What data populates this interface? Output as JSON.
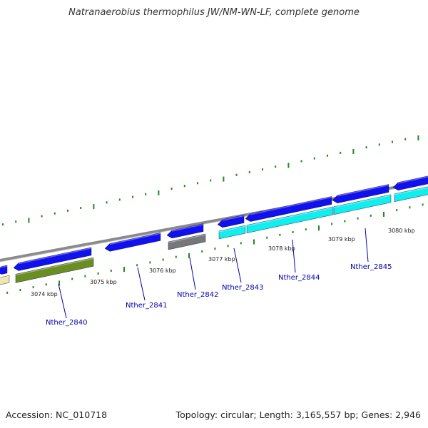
{
  "title": "Natranaerobius thermophilus JW/NM-WN-LF, complete genome",
  "footer": {
    "accession": "Accession: NC_010718",
    "summary": "Topology: circular; Length: 3,165,557 bp; Genes: 2,946"
  },
  "colors": {
    "blue_gene": "#1111ee",
    "cyan_gene": "#11eeee",
    "olive_gene": "#6b8e23",
    "gray_gene": "#777777",
    "yellow_gene": "#eee8aa",
    "tick_green": "#228822",
    "label_blue": "#0000aa"
  },
  "kbp_labels": [
    "3074 kbp",
    "3075 kbp",
    "3076 kbp",
    "3077 kbp",
    "3078 kbp",
    "3079 kbp",
    "3080 kbp"
  ],
  "gene_labels": [
    "Nther_2840",
    "Nther_2841",
    "Nther_2842",
    "Nther_2843",
    "Nther_2844",
    "Nther_2845"
  ]
}
